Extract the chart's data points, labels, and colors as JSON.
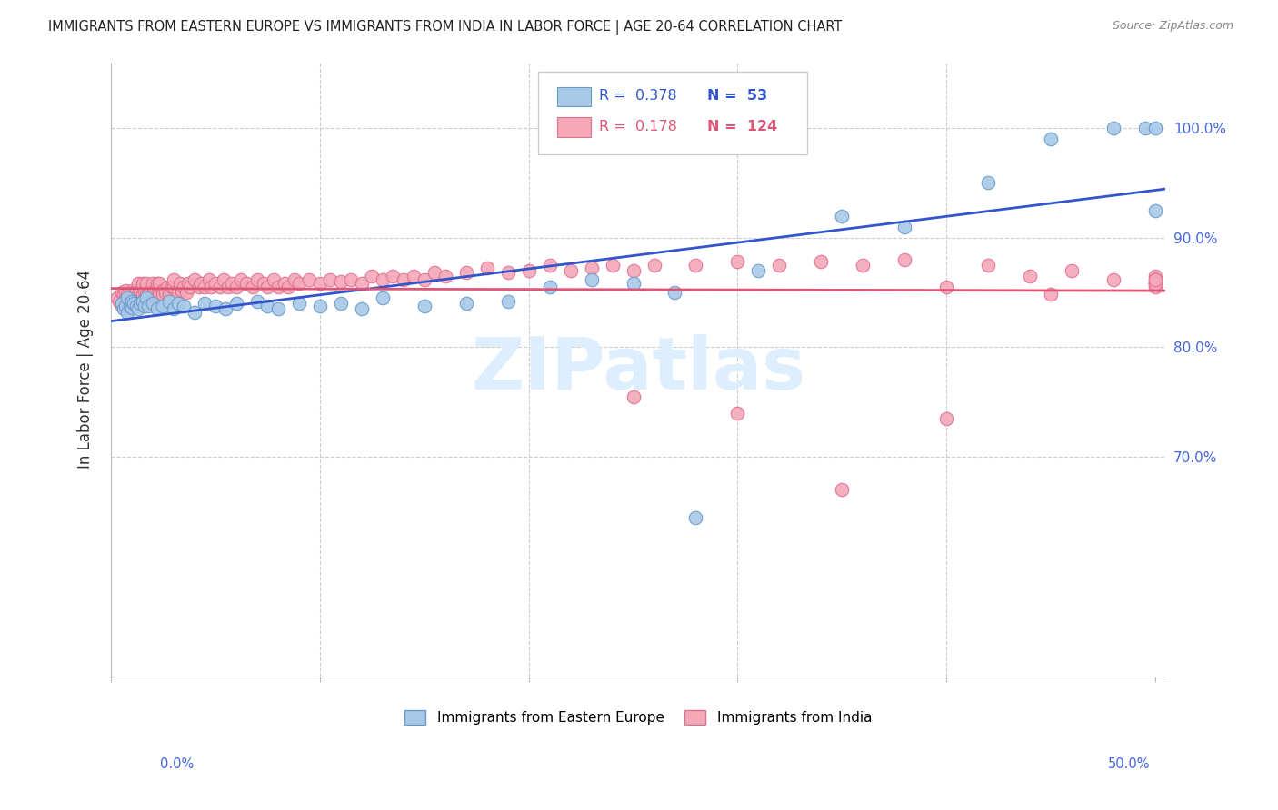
{
  "title": "IMMIGRANTS FROM EASTERN EUROPE VS IMMIGRANTS FROM INDIA IN LABOR FORCE | AGE 20-64 CORRELATION CHART",
  "source": "Source: ZipAtlas.com",
  "ylabel": "In Labor Force | Age 20-64",
  "legend_r_blue": "0.378",
  "legend_n_blue": "53",
  "legend_r_pink": "0.178",
  "legend_n_pink": "124",
  "blue_color": "#a8c8e8",
  "blue_edge": "#6699cc",
  "pink_color": "#f4a8b8",
  "pink_edge": "#e07090",
  "line_blue_color": "#3355cc",
  "line_pink_color": "#dd5577",
  "watermark_color": "#ddeeff",
  "title_color": "#222222",
  "source_color": "#888888",
  "axis_label_color": "#333333",
  "right_tick_color": "#4466dd",
  "xlim": [
    0.0,
    0.505
  ],
  "ylim": [
    0.5,
    1.06
  ],
  "yticks": [
    0.7,
    0.8,
    0.9,
    1.0
  ],
  "ytick_labels": [
    "70.0%",
    "80.0%",
    "90.0%",
    "100.0%"
  ],
  "xticks": [
    0.0,
    0.1,
    0.2,
    0.3,
    0.4,
    0.5
  ],
  "grid_color": "#cccccc",
  "spine_color": "#bbbbbb",
  "blue_x": [
    0.005,
    0.006,
    0.007,
    0.008,
    0.008,
    0.009,
    0.01,
    0.01,
    0.011,
    0.012,
    0.013,
    0.014,
    0.015,
    0.016,
    0.017,
    0.018,
    0.02,
    0.022,
    0.025,
    0.028,
    0.03,
    0.032,
    0.035,
    0.04,
    0.045,
    0.05,
    0.055,
    0.06,
    0.07,
    0.075,
    0.08,
    0.09,
    0.1,
    0.11,
    0.12,
    0.13,
    0.15,
    0.17,
    0.19,
    0.21,
    0.23,
    0.25,
    0.27,
    0.31,
    0.35,
    0.38,
    0.42,
    0.45,
    0.48,
    0.495,
    0.5,
    0.5,
    0.28
  ],
  "blue_y": [
    0.84,
    0.835,
    0.838,
    0.832,
    0.845,
    0.838,
    0.836,
    0.842,
    0.84,
    0.838,
    0.835,
    0.84,
    0.842,
    0.838,
    0.845,
    0.838,
    0.84,
    0.835,
    0.838,
    0.842,
    0.835,
    0.84,
    0.838,
    0.832,
    0.84,
    0.838,
    0.835,
    0.84,
    0.842,
    0.838,
    0.835,
    0.84,
    0.838,
    0.84,
    0.835,
    0.845,
    0.838,
    0.84,
    0.842,
    0.855,
    0.862,
    0.858,
    0.85,
    0.87,
    0.92,
    0.91,
    0.95,
    0.99,
    1.0,
    1.0,
    1.0,
    0.925,
    0.645
  ],
  "pink_x": [
    0.003,
    0.004,
    0.005,
    0.005,
    0.006,
    0.007,
    0.007,
    0.008,
    0.008,
    0.009,
    0.01,
    0.01,
    0.011,
    0.011,
    0.012,
    0.012,
    0.013,
    0.013,
    0.014,
    0.014,
    0.015,
    0.015,
    0.016,
    0.016,
    0.017,
    0.017,
    0.018,
    0.018,
    0.019,
    0.02,
    0.02,
    0.021,
    0.021,
    0.022,
    0.022,
    0.023,
    0.023,
    0.024,
    0.025,
    0.025,
    0.026,
    0.027,
    0.028,
    0.029,
    0.03,
    0.03,
    0.032,
    0.033,
    0.034,
    0.035,
    0.036,
    0.037,
    0.038,
    0.04,
    0.042,
    0.043,
    0.045,
    0.047,
    0.048,
    0.05,
    0.052,
    0.054,
    0.056,
    0.058,
    0.06,
    0.062,
    0.065,
    0.068,
    0.07,
    0.073,
    0.075,
    0.078,
    0.08,
    0.083,
    0.085,
    0.088,
    0.09,
    0.095,
    0.1,
    0.105,
    0.11,
    0.115,
    0.12,
    0.125,
    0.13,
    0.135,
    0.14,
    0.145,
    0.15,
    0.155,
    0.16,
    0.17,
    0.18,
    0.19,
    0.2,
    0.21,
    0.22,
    0.23,
    0.24,
    0.25,
    0.26,
    0.28,
    0.3,
    0.32,
    0.34,
    0.36,
    0.38,
    0.4,
    0.42,
    0.44,
    0.46,
    0.48,
    0.5,
    0.5,
    0.5,
    0.5,
    0.5,
    0.5,
    0.5,
    0.35,
    0.4,
    0.3,
    0.25,
    0.45
  ],
  "pink_y": [
    0.845,
    0.842,
    0.85,
    0.838,
    0.848,
    0.845,
    0.852,
    0.84,
    0.848,
    0.845,
    0.852,
    0.84,
    0.85,
    0.845,
    0.852,
    0.84,
    0.848,
    0.858,
    0.845,
    0.852,
    0.848,
    0.858,
    0.845,
    0.852,
    0.848,
    0.858,
    0.848,
    0.84,
    0.852,
    0.848,
    0.858,
    0.848,
    0.852,
    0.848,
    0.858,
    0.848,
    0.858,
    0.848,
    0.852,
    0.848,
    0.85,
    0.855,
    0.848,
    0.855,
    0.855,
    0.862,
    0.85,
    0.858,
    0.852,
    0.855,
    0.85,
    0.858,
    0.855,
    0.862,
    0.855,
    0.858,
    0.855,
    0.862,
    0.855,
    0.858,
    0.855,
    0.862,
    0.855,
    0.858,
    0.855,
    0.862,
    0.858,
    0.855,
    0.862,
    0.858,
    0.855,
    0.862,
    0.855,
    0.858,
    0.855,
    0.862,
    0.858,
    0.862,
    0.858,
    0.862,
    0.86,
    0.862,
    0.858,
    0.865,
    0.862,
    0.865,
    0.862,
    0.865,
    0.862,
    0.868,
    0.865,
    0.868,
    0.872,
    0.868,
    0.87,
    0.875,
    0.87,
    0.872,
    0.875,
    0.87,
    0.875,
    0.875,
    0.878,
    0.875,
    0.878,
    0.875,
    0.88,
    0.855,
    0.875,
    0.865,
    0.87,
    0.862,
    0.865,
    0.858,
    0.862,
    0.858,
    0.855,
    0.858,
    0.862,
    0.67,
    0.735,
    0.74,
    0.755,
    0.848
  ]
}
